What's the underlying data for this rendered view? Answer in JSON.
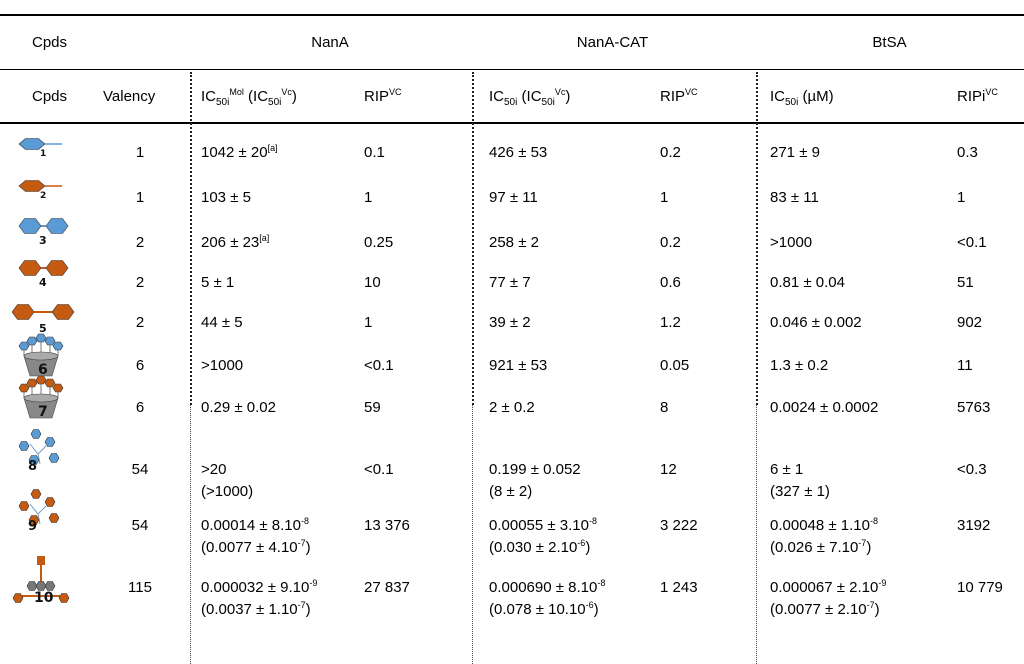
{
  "header_groups": {
    "col1": "Cpds",
    "nana": "NanA",
    "nanacat": "NanA-CAT",
    "btsa": "BtSA"
  },
  "subheaders": [
    "Cpds",
    "Valency",
    "IC50i Mol (IC50i Vc)",
    "RIPVC",
    "IC50i (IC50i Vc)",
    "RIPVC",
    "IC50i (µM)",
    "RIPiVC"
  ],
  "rows": [
    {
      "cpd": "1",
      "valency": "1",
      "nana_ic": "1042 ± 20[a]",
      "nana_rip": "0.1",
      "cat_ic": "426 ± 53",
      "cat_rip": "0.2",
      "bt_ic": "271 ± 9",
      "bt_rip": "0.3",
      "color": "#5b9bd5",
      "shape": "mono"
    },
    {
      "cpd": "2",
      "valency": "1",
      "nana_ic": "103 ± 5",
      "nana_rip": "1",
      "cat_ic": "97 ± 11",
      "cat_rip": "1",
      "bt_ic": "83 ± 11",
      "bt_rip": "1",
      "color": "#c55a11",
      "shape": "mono"
    },
    {
      "cpd": "3",
      "valency": "2",
      "nana_ic": "206 ± 23[a]",
      "nana_rip": "0.25",
      "cat_ic": "258 ± 2",
      "cat_rip": "0.2",
      "bt_ic": ">1000",
      "bt_rip": "<0.1",
      "color": "#5b9bd5",
      "shape": "di-short"
    },
    {
      "cpd": "4",
      "valency": "2",
      "nana_ic": "5 ± 1",
      "nana_rip": "10",
      "cat_ic": "77 ± 7",
      "cat_rip": "0.6",
      "bt_ic": "0.81 ± 0.04",
      "bt_rip": "51",
      "color": "#c55a11",
      "shape": "di-short"
    },
    {
      "cpd": "5",
      "valency": "2",
      "nana_ic": "44 ± 5",
      "nana_rip": "1",
      "cat_ic": "39 ± 2",
      "cat_rip": "1.2",
      "bt_ic": "0.046 ± 0.002",
      "bt_rip": "902",
      "color": "#c55a11",
      "shape": "di-long"
    },
    {
      "cpd": "6",
      "valency": "6",
      "nana_ic": ">1000",
      "nana_rip": "<0.1",
      "cat_ic": "921 ± 53",
      "cat_rip": "0.05",
      "bt_ic": "1.3 ± 0.2",
      "bt_rip": "11",
      "color": "#5b9bd5",
      "shape": "cone"
    },
    {
      "cpd": "7",
      "valency": "6",
      "nana_ic": "0.29 ± 0.02",
      "nana_rip": "59",
      "cat_ic": "2 ± 0.2",
      "cat_rip": "8",
      "bt_ic": "0.0024 ± 0.0002",
      "bt_rip": "5763",
      "color": "#c55a11",
      "shape": "cone"
    },
    {
      "cpd": "8",
      "valency": "54",
      "nana_ic": ">20",
      "nana_ic2": "(>1000)",
      "nana_rip": "<0.1",
      "cat_ic": "0.199 ± 0.052",
      "cat_ic2": "(8 ± 2)",
      "cat_rip": "12",
      "bt_ic": "6 ± 1",
      "bt_ic2": "(327 ± 1)",
      "bt_rip": "<0.3",
      "color": "#5b9bd5",
      "shape": "dendron"
    },
    {
      "cpd": "9",
      "valency": "54",
      "nana_ic": "0.00014 ± 8.10-8",
      "nana_ic2": "(0.0077 ± 4.10-7)",
      "nana_rip": "13 376",
      "cat_ic": "0.00055 ± 3.10-8",
      "cat_ic2": "(0.030 ± 2.10-6)",
      "cat_rip": "3 222",
      "bt_ic": "0.00048 ± 1.10-8",
      "bt_ic2": "(0.026 ± 7.10-7)",
      "bt_rip": "3192",
      "color": "#c55a11",
      "shape": "dendron"
    },
    {
      "cpd": "10",
      "valency": "115",
      "nana_ic": "0.000032 ± 9.10-9",
      "nana_ic2": "(0.0037 ± 1.10-7)",
      "nana_rip": "27 837",
      "cat_ic": "0.000690 ± 8.10-8",
      "cat_ic2": "(0.078 ± 10.10-6)",
      "cat_rip": "1 243",
      "bt_ic": "0.000067 ± 2.10-9",
      "bt_ic2": "(0.0077 ± 2.10-7)",
      "bt_rip": "10 779",
      "color": "#c55a11",
      "shape": "big-dendron"
    }
  ]
}
